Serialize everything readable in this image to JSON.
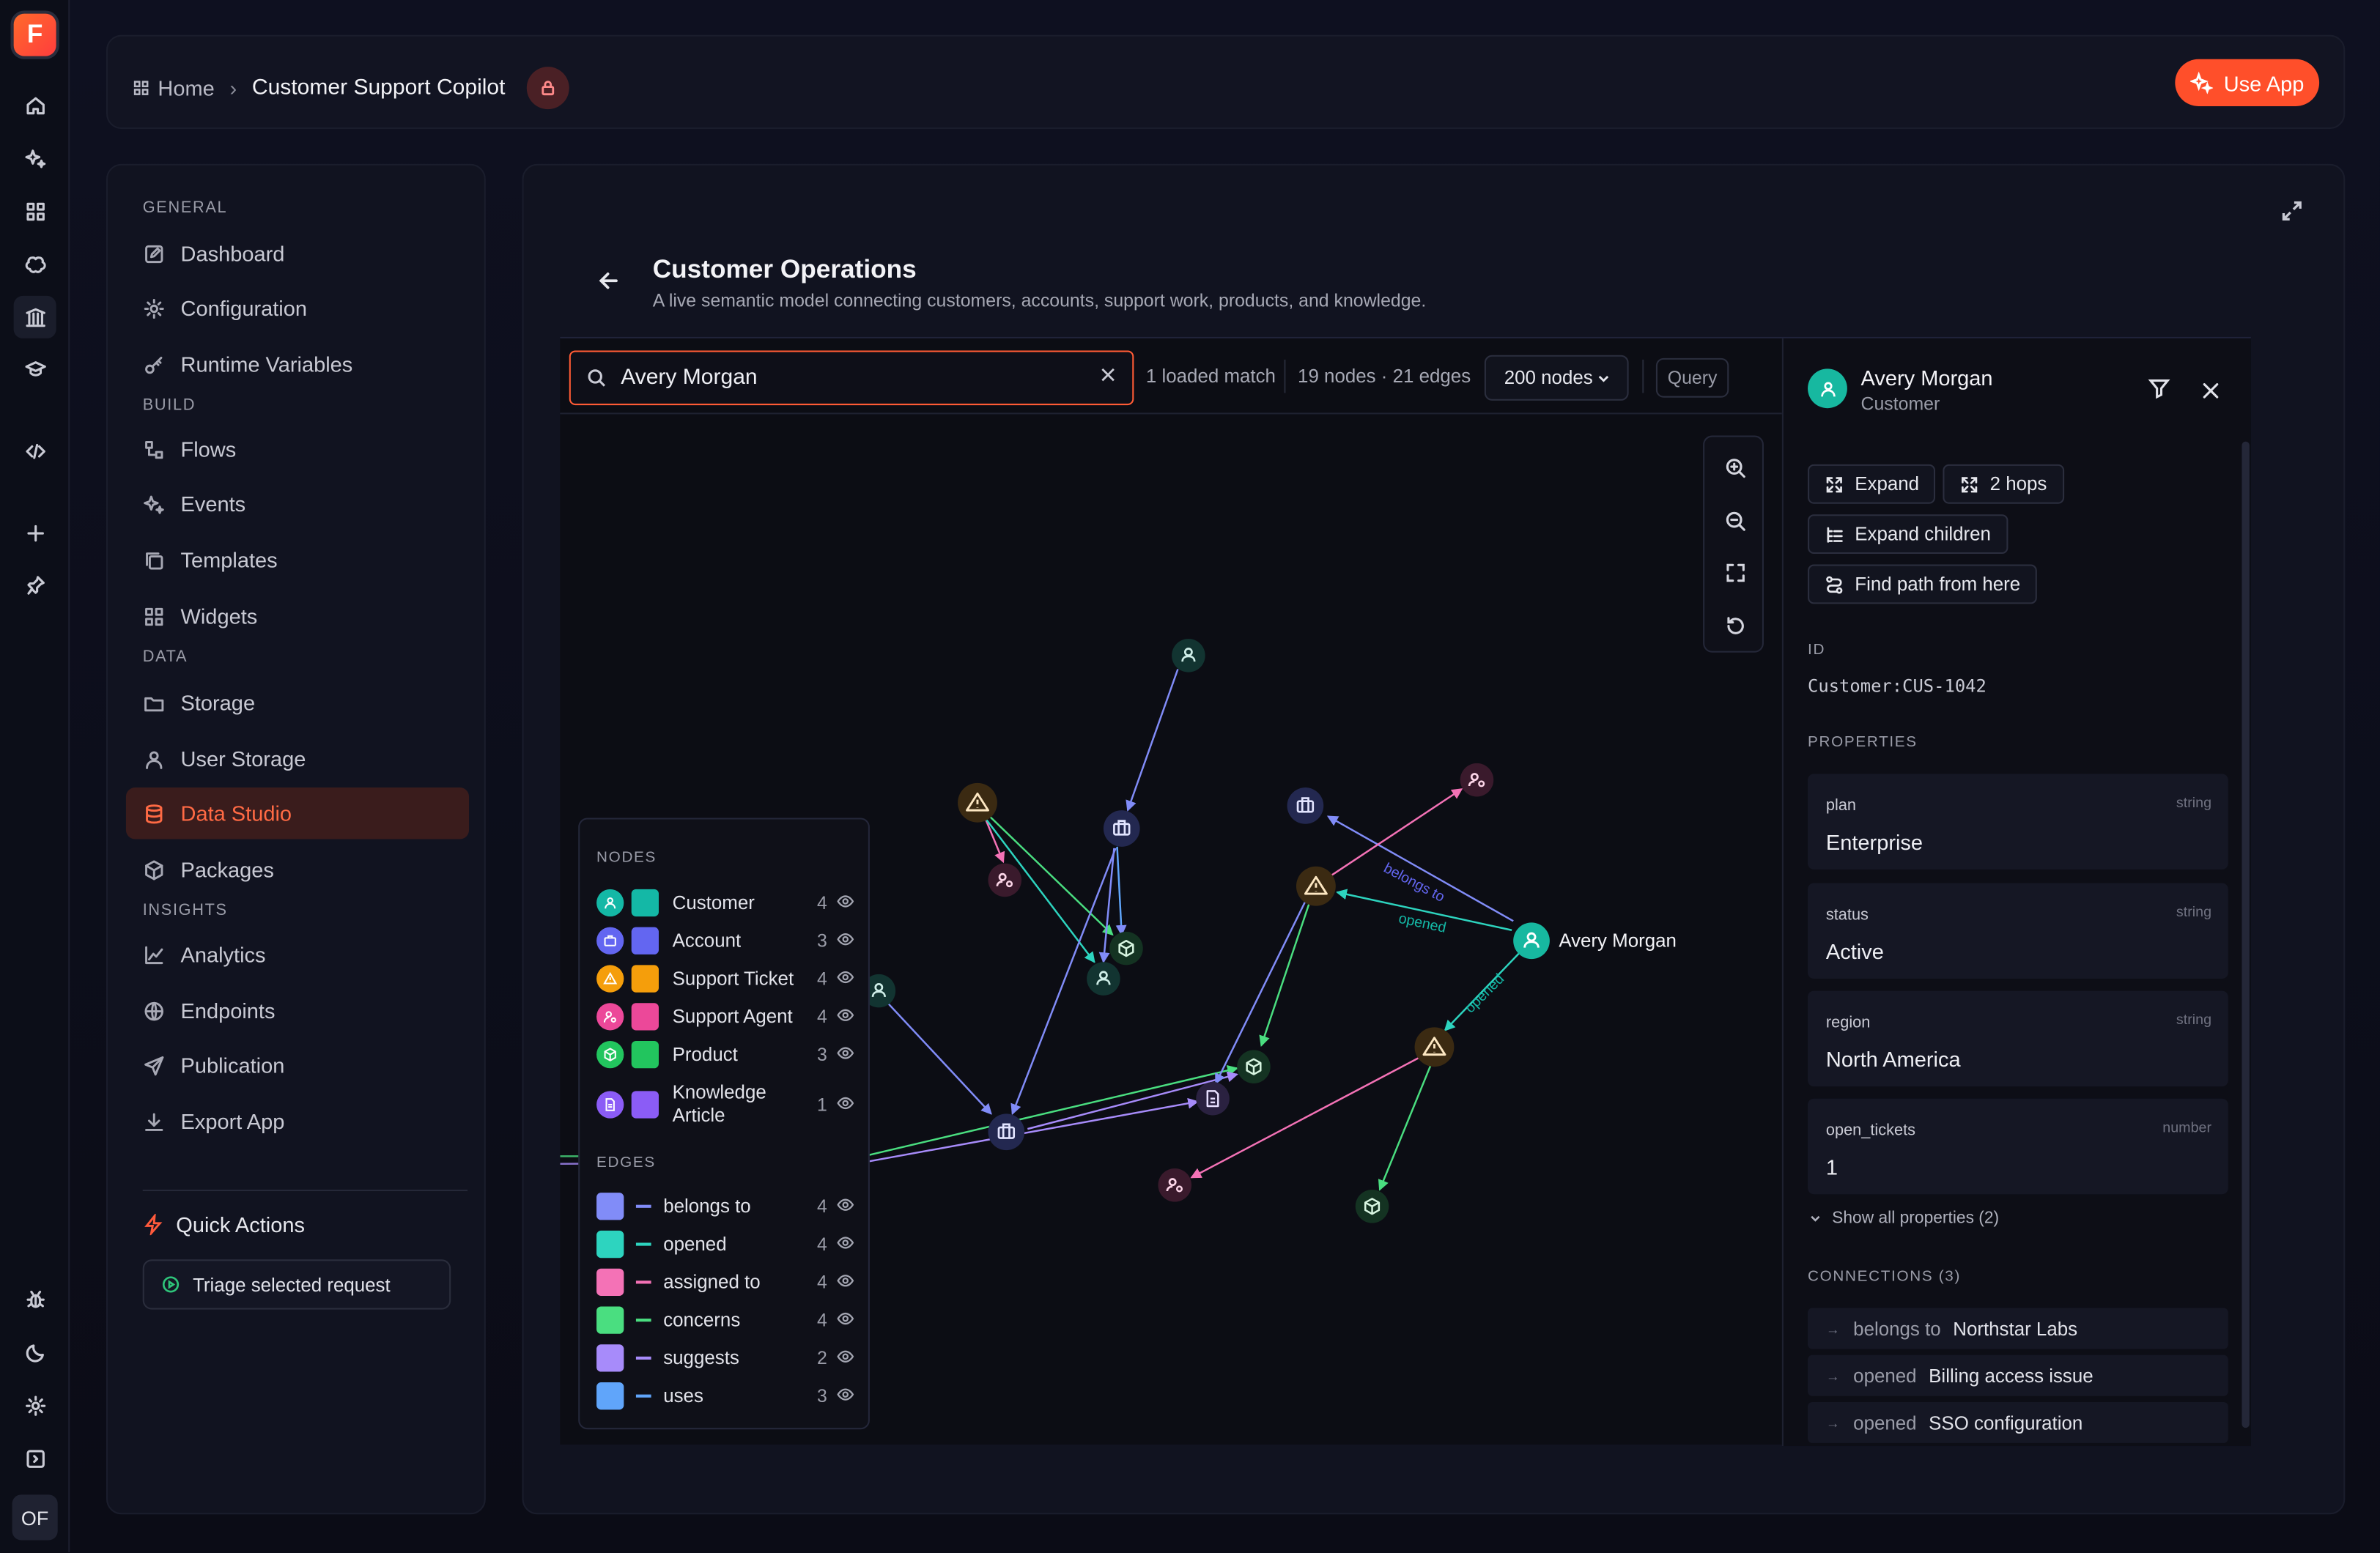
{
  "rail": {
    "logo_letter": "F",
    "avatar": "OF",
    "icons": [
      "home-icon",
      "sparkles-icon",
      "grid-icon",
      "brain-icon",
      "library-icon",
      "graduation-cap-icon",
      "code-icon",
      "plus-icon",
      "pin-icon",
      "bug-icon",
      "moon-icon",
      "gear-icon",
      "sidebar-toggle-icon"
    ]
  },
  "header": {
    "home": "Home",
    "current": "Customer Support Copilot",
    "use_app": "Use App"
  },
  "sidebar": {
    "sections": {
      "general": "GENERAL",
      "build": "BUILD",
      "data": "DATA",
      "insights": "INSIGHTS"
    },
    "items": {
      "dashboard": "Dashboard",
      "configuration": "Configuration",
      "runtime_variables": "Runtime Variables",
      "flows": "Flows",
      "events": "Events",
      "templates": "Templates",
      "widgets": "Widgets",
      "storage": "Storage",
      "user_storage": "User Storage",
      "data_studio": "Data Studio",
      "packages": "Packages",
      "analytics": "Analytics",
      "endpoints": "Endpoints",
      "publication": "Publication",
      "export_app": "Export App"
    },
    "active": "Data Studio",
    "quick_actions": {
      "title": "Quick Actions",
      "button": "Triage selected request"
    }
  },
  "main": {
    "title": "Customer Operations",
    "subtitle": "A live semantic model connecting customers, accounts, support work, products, and knowledge.",
    "toolbar": {
      "search_value": "Avery Morgan",
      "match": "1 loaded match",
      "stats": "19 nodes · 21 edges",
      "node_limit": "200 nodes",
      "query": "Query"
    },
    "graph": {
      "focus_label": "Avery Morgan",
      "edge_labels": {
        "belongs_to": "belongs to",
        "opened": "opened"
      }
    },
    "legend": {
      "nodes_title": "NODES",
      "edges_title": "EDGES",
      "nodes": [
        {
          "name": "Customer",
          "count": "4",
          "color": "#14b8a6",
          "icon": "user-icon"
        },
        {
          "name": "Account",
          "count": "3",
          "color": "#6366f1",
          "icon": "briefcase-icon"
        },
        {
          "name": "Support Ticket",
          "count": "4",
          "color": "#f59e0b",
          "icon": "warning-icon"
        },
        {
          "name": "Support Agent",
          "count": "4",
          "color": "#ec4899",
          "icon": "user-gear-icon"
        },
        {
          "name": "Product",
          "count": "3",
          "color": "#22c55e",
          "icon": "box-icon"
        },
        {
          "name": "Knowledge Article",
          "count": "1",
          "color": "#8b5cf6",
          "icon": "document-icon"
        }
      ],
      "edges": [
        {
          "name": "belongs to",
          "count": "4",
          "color": "#818cf8"
        },
        {
          "name": "opened",
          "count": "4",
          "color": "#2dd4bf"
        },
        {
          "name": "assigned to",
          "count": "4",
          "color": "#f472b6"
        },
        {
          "name": "concerns",
          "count": "4",
          "color": "#4ade80"
        },
        {
          "name": "suggests",
          "count": "2",
          "color": "#a78bfa"
        },
        {
          "name": "uses",
          "count": "3",
          "color": "#60a5fa"
        }
      ]
    }
  },
  "details": {
    "name": "Avery Morgan",
    "type": "Customer",
    "actions": {
      "expand": "Expand",
      "hops": "2 hops",
      "expand_children": "Expand children",
      "find_path": "Find path from here"
    },
    "id_label": "ID",
    "id_value": "Customer:CUS-1042",
    "properties_label": "PROPERTIES",
    "properties": [
      {
        "key": "plan",
        "type": "string",
        "value": "Enterprise"
      },
      {
        "key": "status",
        "type": "string",
        "value": "Active"
      },
      {
        "key": "region",
        "type": "string",
        "value": "North America"
      },
      {
        "key": "open_tickets",
        "type": "number",
        "value": "1"
      }
    ],
    "show_all": "Show all properties (2)",
    "connections_label": "CONNECTIONS (3)",
    "connections": [
      {
        "rel": "belongs to",
        "target": "Northstar Labs"
      },
      {
        "rel": "opened",
        "target": "Billing access issue"
      },
      {
        "rel": "opened",
        "target": "SSO configuration"
      }
    ]
  },
  "colors": {
    "accent": "#ff4f2a",
    "bg": "#0b0d17"
  }
}
